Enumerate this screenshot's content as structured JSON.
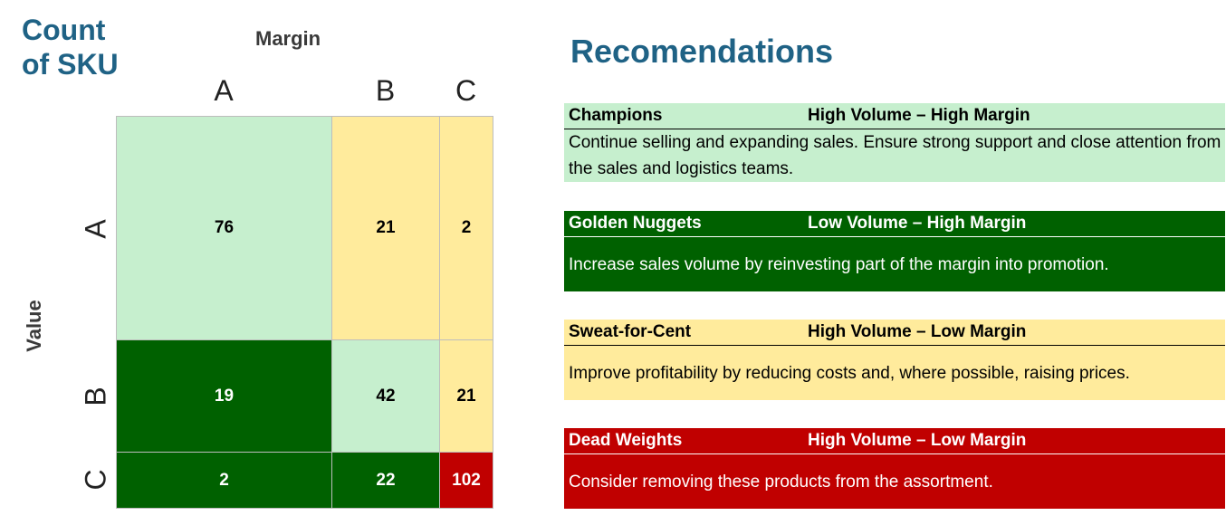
{
  "matrix": {
    "title": "Count of SKU",
    "column_title": "Margin",
    "row_title": "Value",
    "colors": {
      "light_green": "#c6efce",
      "yellow": "#ffeb9c",
      "dark_green": "#006100",
      "red": "#c00000"
    }
  },
  "chart_data": {
    "type": "heatmap",
    "title": "Count of SKU",
    "xlabel": "Margin",
    "ylabel": "Value",
    "x_categories": [
      "A",
      "B",
      "C"
    ],
    "y_categories": [
      "A",
      "B",
      "C"
    ],
    "values": [
      [
        76,
        21,
        2
      ],
      [
        19,
        42,
        21
      ],
      [
        2,
        22,
        102
      ]
    ],
    "cell_colors": [
      [
        "#c6efce",
        "#ffeb9c",
        "#ffeb9c"
      ],
      [
        "#006100",
        "#c6efce",
        "#ffeb9c"
      ],
      [
        "#006100",
        "#006100",
        "#c00000"
      ]
    ]
  },
  "recommendations": {
    "title": "Recomendations",
    "items": [
      {
        "name": "Champions",
        "segment": "High Volume – High Margin",
        "text": "Continue selling and expanding sales. Ensure strong support and close attention from the sales and logistics teams.",
        "bg": "#c6efce",
        "fg": "#000000"
      },
      {
        "name": "Golden Nuggets",
        "segment": "Low Volume – High Margin",
        "text": "Increase sales volume by reinvesting part of the margin into promotion.",
        "bg": "#006100",
        "fg": "#ffffff"
      },
      {
        "name": "Sweat-for-Cent",
        "segment": "High Volume – Low Margin",
        "text": "Improve profitability by reducing costs and, where possible, raising prices.",
        "bg": "#ffeb9c",
        "fg": "#000000"
      },
      {
        "name": "Dead Weights",
        "segment": "High Volume – Low Margin",
        "text": "Consider removing these products from the assortment.",
        "bg": "#c00000",
        "fg": "#ffffff"
      }
    ]
  }
}
